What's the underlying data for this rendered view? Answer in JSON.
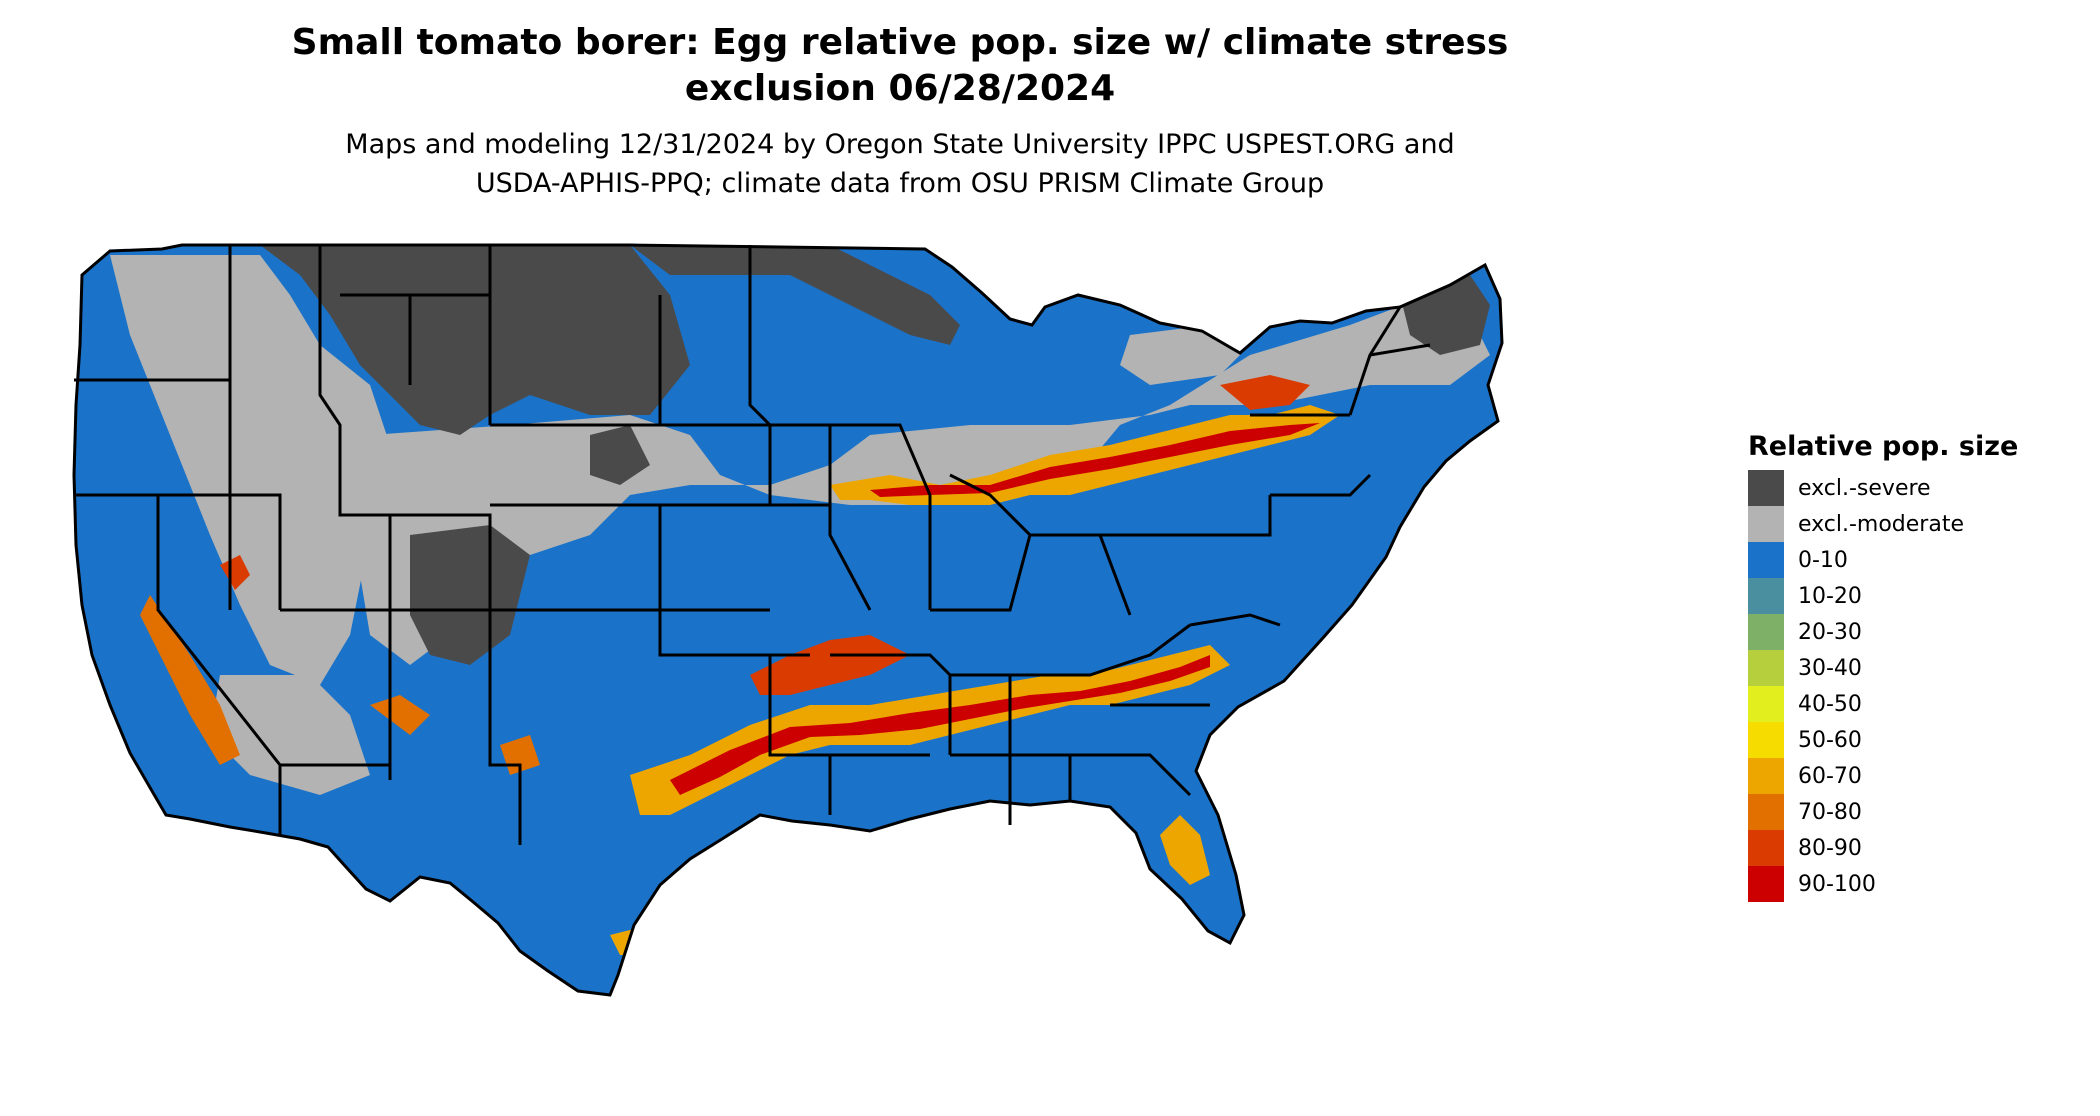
{
  "title": {
    "line1": "Small tomato borer: Egg relative pop. size w/ climate stress",
    "line2": "exclusion 06/28/2024"
  },
  "subtitle": {
    "line1": "Maps and modeling 12/31/2024 by Oregon State University IPPC USPEST.ORG and",
    "line2": "USDA-APHIS-PPQ; climate data from OSU PRISM Climate Group"
  },
  "legend": {
    "title": "Relative pop. size",
    "items": [
      {
        "label": "excl.-severe",
        "color": "#4a4a4a"
      },
      {
        "label": "excl.-moderate",
        "color": "#b3b3b3"
      },
      {
        "label": "0-10",
        "color": "#1a73c9"
      },
      {
        "label": "10-20",
        "color": "#4a8fa0"
      },
      {
        "label": "20-30",
        "color": "#7fb067"
      },
      {
        "label": "30-40",
        "color": "#b5cf3d"
      },
      {
        "label": "40-50",
        "color": "#e3ee1e"
      },
      {
        "label": "50-60",
        "color": "#f7dc00"
      },
      {
        "label": "60-70",
        "color": "#eda600"
      },
      {
        "label": "70-80",
        "color": "#e27000"
      },
      {
        "label": "80-90",
        "color": "#d93b00"
      },
      {
        "label": "90-100",
        "color": "#cc0000"
      }
    ]
  }
}
